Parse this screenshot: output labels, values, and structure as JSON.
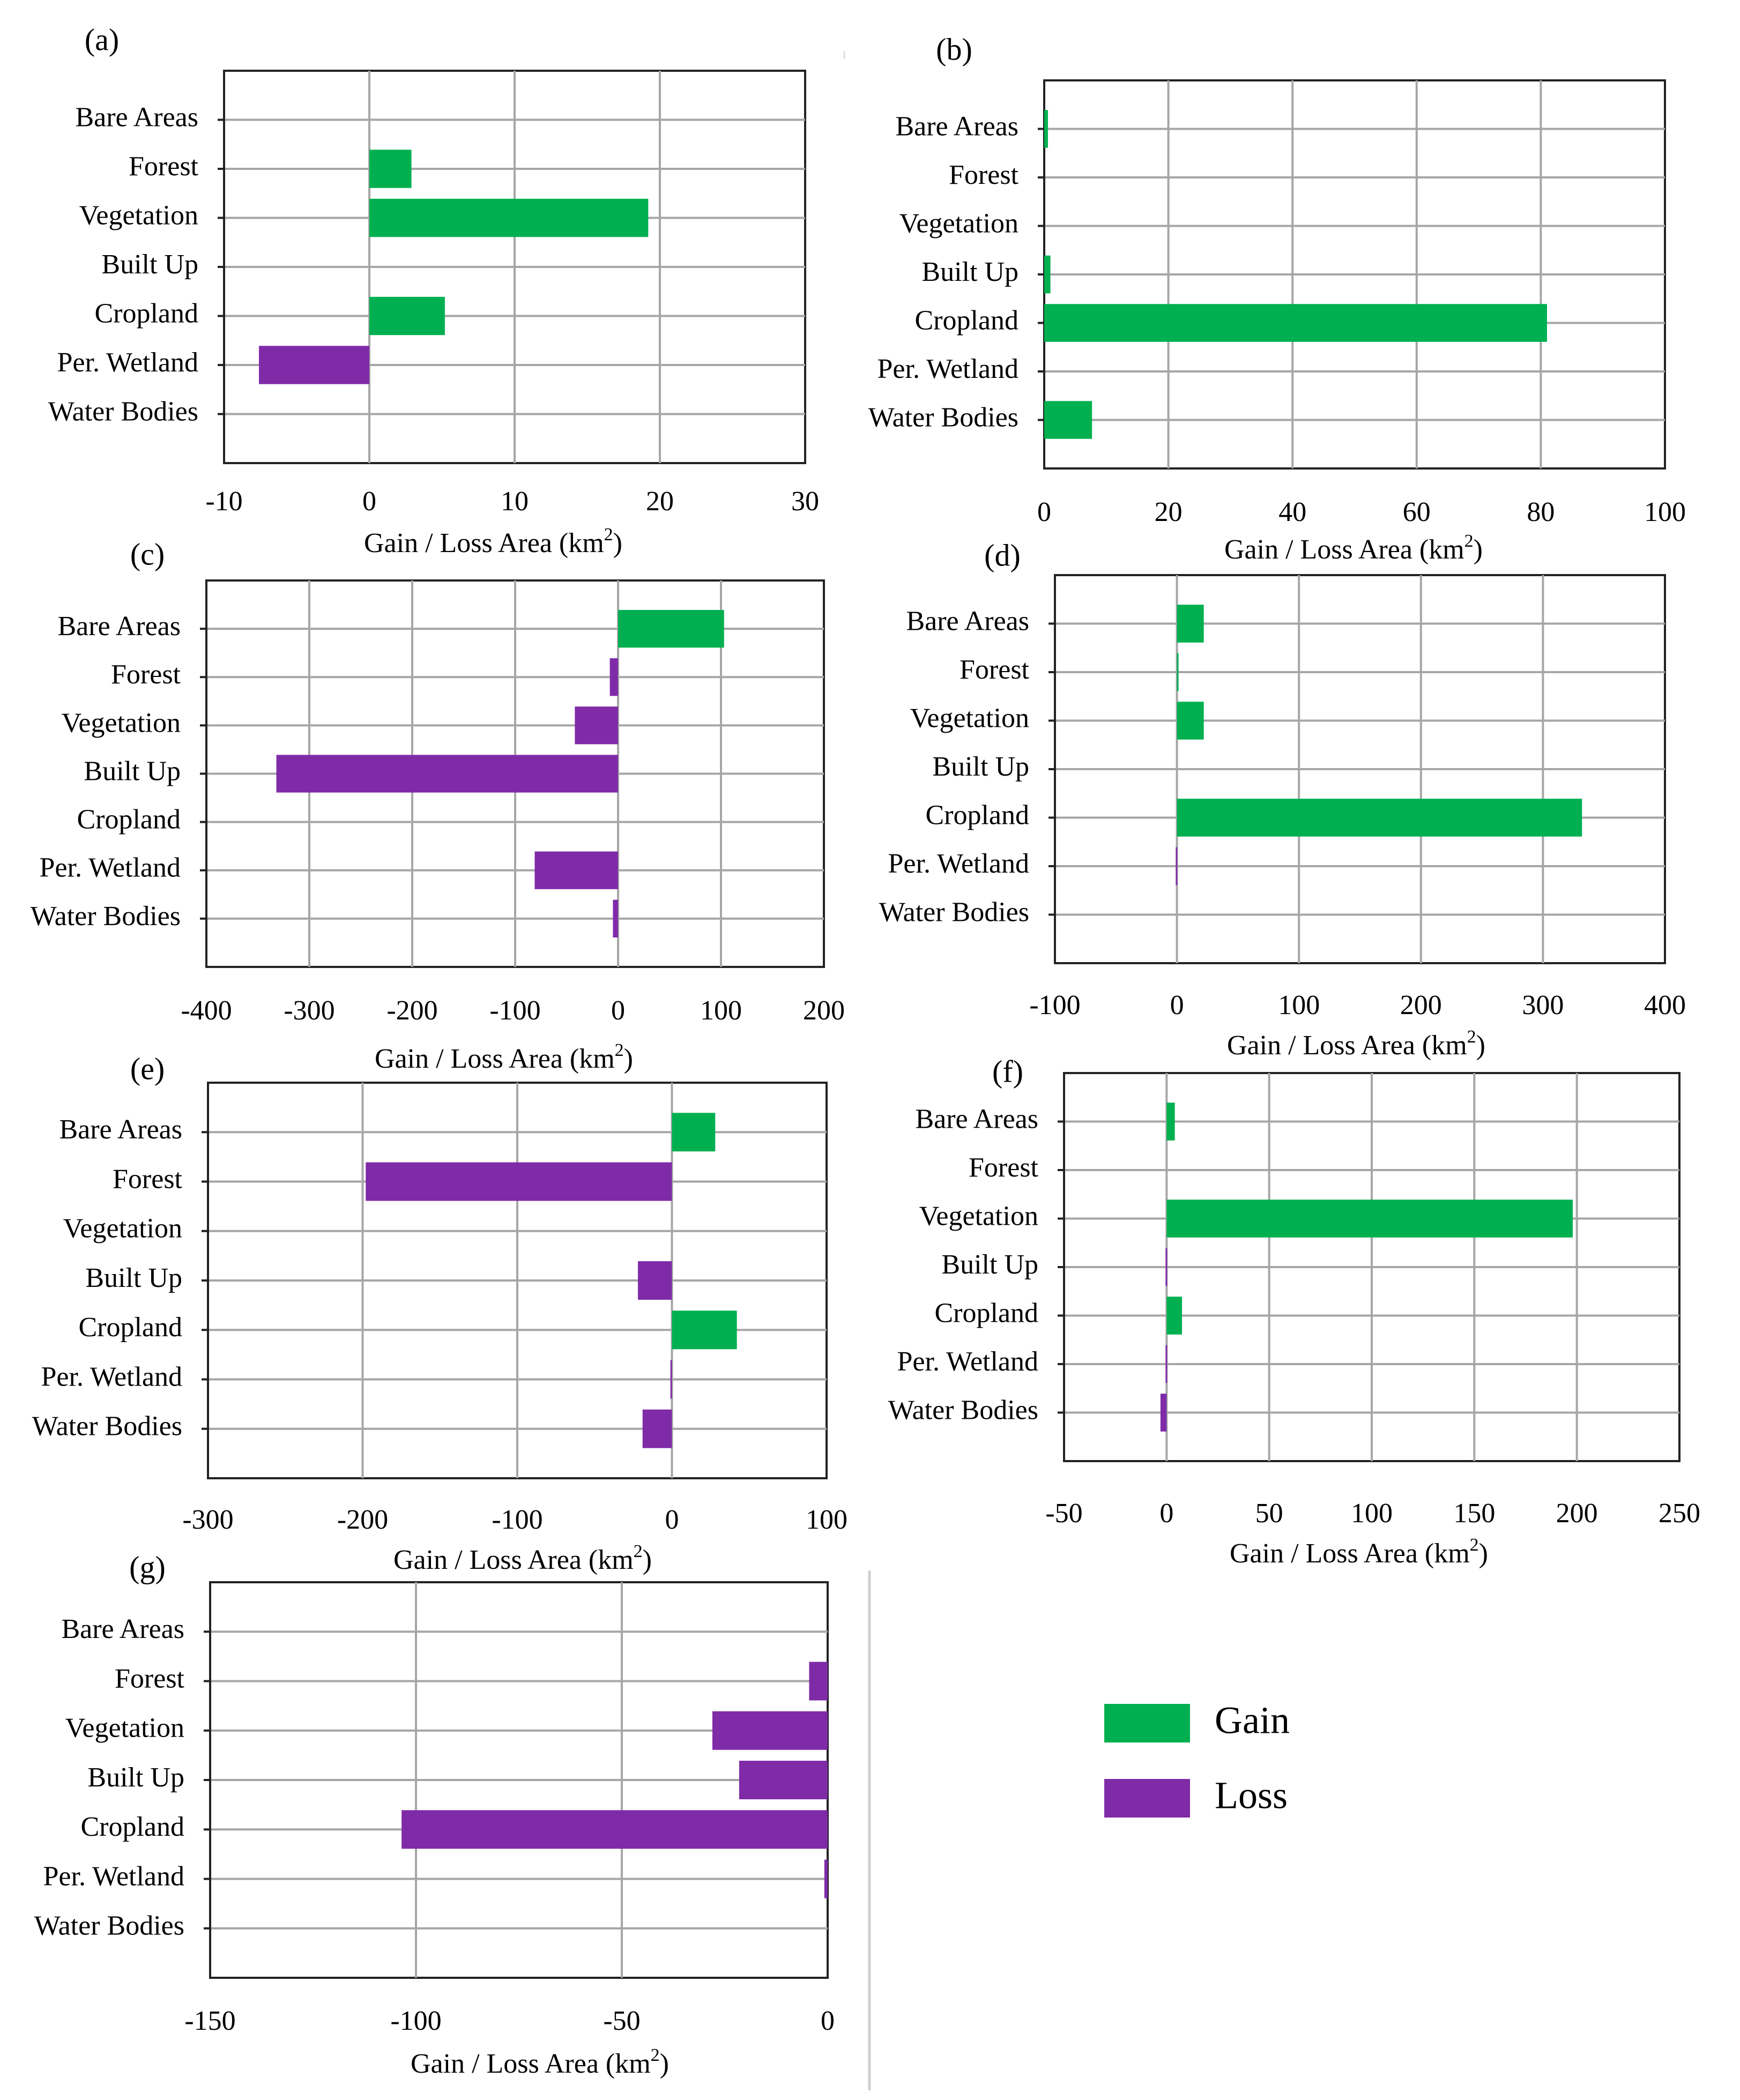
{
  "figure": {
    "legend": {
      "items": [
        {
          "label": "Gain",
          "color": "#00B050"
        },
        {
          "label": "Loss",
          "color": "#7F2BA8"
        }
      ]
    }
  },
  "chart_data": [
    {
      "panel": "(a)",
      "type": "bar",
      "orientation": "horizontal",
      "categories": [
        "Bare Areas",
        "Forest",
        "Vegetation",
        "Built Up",
        "Cropland",
        "Per. Wetland",
        "Water Bodies"
      ],
      "values": [
        0,
        2.9,
        19.2,
        0,
        5.2,
        -7.6,
        0
      ],
      "xlim": [
        -10,
        30
      ],
      "xticks": [
        -10,
        0,
        10,
        20,
        30
      ],
      "xlabel": "Gain / Loss Area (km",
      "xlabel_sup": "2",
      "xlabel_end": ")",
      "grid": true
    },
    {
      "panel": "(b)",
      "type": "bar",
      "orientation": "horizontal",
      "categories": [
        "Bare Areas",
        "Forest",
        "Vegetation",
        "Built Up",
        "Cropland",
        "Per. Wetland",
        "Water Bodies"
      ],
      "values": [
        0.6,
        0,
        0,
        1.0,
        81,
        0,
        7.7
      ],
      "xlim": [
        0,
        100
      ],
      "xticks": [
        0,
        20,
        40,
        60,
        80,
        100
      ],
      "xlabel": "Gain / Loss Area (km",
      "xlabel_sup": "2",
      "xlabel_end": ")",
      "grid": true
    },
    {
      "panel": "(c)",
      "type": "bar",
      "orientation": "horizontal",
      "categories": [
        "Bare Areas",
        "Forest",
        "Vegetation",
        "Built Up",
        "Cropland",
        "Per. Wetland",
        "Water Bodies"
      ],
      "values": [
        103,
        -8,
        -42,
        -332,
        0,
        -81,
        -5
      ],
      "xlim": [
        -400,
        200
      ],
      "xticks": [
        -400,
        -300,
        -200,
        -100,
        0,
        100,
        200
      ],
      "xlabel": "Gain / Loss Area (km",
      "xlabel_sup": "2",
      "xlabel_end": ")",
      "grid": true
    },
    {
      "panel": "(d)",
      "type": "bar",
      "orientation": "horizontal",
      "categories": [
        "Bare Areas",
        "Forest",
        "Vegetation",
        "Built Up",
        "Cropland",
        "Per. Wetland",
        "Water Bodies"
      ],
      "values": [
        22,
        1,
        22,
        0,
        332,
        -1,
        0
      ],
      "xlim": [
        -100,
        400
      ],
      "xticks": [
        -100,
        0,
        100,
        200,
        300,
        400
      ],
      "xlabel": "Gain / Loss Area (km",
      "xlabel_sup": "2",
      "xlabel_end": ")",
      "grid": true
    },
    {
      "panel": "(e)",
      "type": "bar",
      "orientation": "horizontal",
      "categories": [
        "Bare Areas",
        "Forest",
        "Vegetation",
        "Built Up",
        "Cropland",
        "Per. Wetland",
        "Water Bodies"
      ],
      "values": [
        28,
        -198,
        0,
        -22,
        42,
        -1,
        -19
      ],
      "xlim": [
        -300,
        100
      ],
      "xticks": [
        -300,
        -200,
        -100,
        0,
        100
      ],
      "xlabel": "Gain / Loss Area (km",
      "xlabel_sup": "2",
      "xlabel_end": ")",
      "grid": true
    },
    {
      "panel": "(f)",
      "type": "bar",
      "orientation": "horizontal",
      "categories": [
        "Bare Areas",
        "Forest",
        "Vegetation",
        "Built Up",
        "Cropland",
        "Per. Wetland",
        "Water Bodies"
      ],
      "values": [
        4,
        0,
        198,
        -0.5,
        7.5,
        -0.5,
        -3
      ],
      "xlim": [
        -50,
        250
      ],
      "xticks": [
        -50,
        0,
        50,
        100,
        150,
        200,
        250
      ],
      "xlabel": "Gain / Loss Area (km",
      "xlabel_sup": "2",
      "xlabel_end": ")",
      "grid": true
    },
    {
      "panel": "(g)",
      "type": "bar",
      "orientation": "horizontal",
      "categories": [
        "Bare Areas",
        "Forest",
        "Vegetation",
        "Built Up",
        "Cropland",
        "Per. Wetland",
        "Water Bodies"
      ],
      "values": [
        0,
        -4.5,
        -28,
        -21.5,
        -103.5,
        -0.8,
        0
      ],
      "xlim": [
        -150,
        0
      ],
      "xticks": [
        -150,
        -100,
        -50,
        0
      ],
      "xlabel": "Gain / Loss Area (km",
      "xlabel_sup": "2",
      "xlabel_end": ")",
      "grid": true
    }
  ]
}
